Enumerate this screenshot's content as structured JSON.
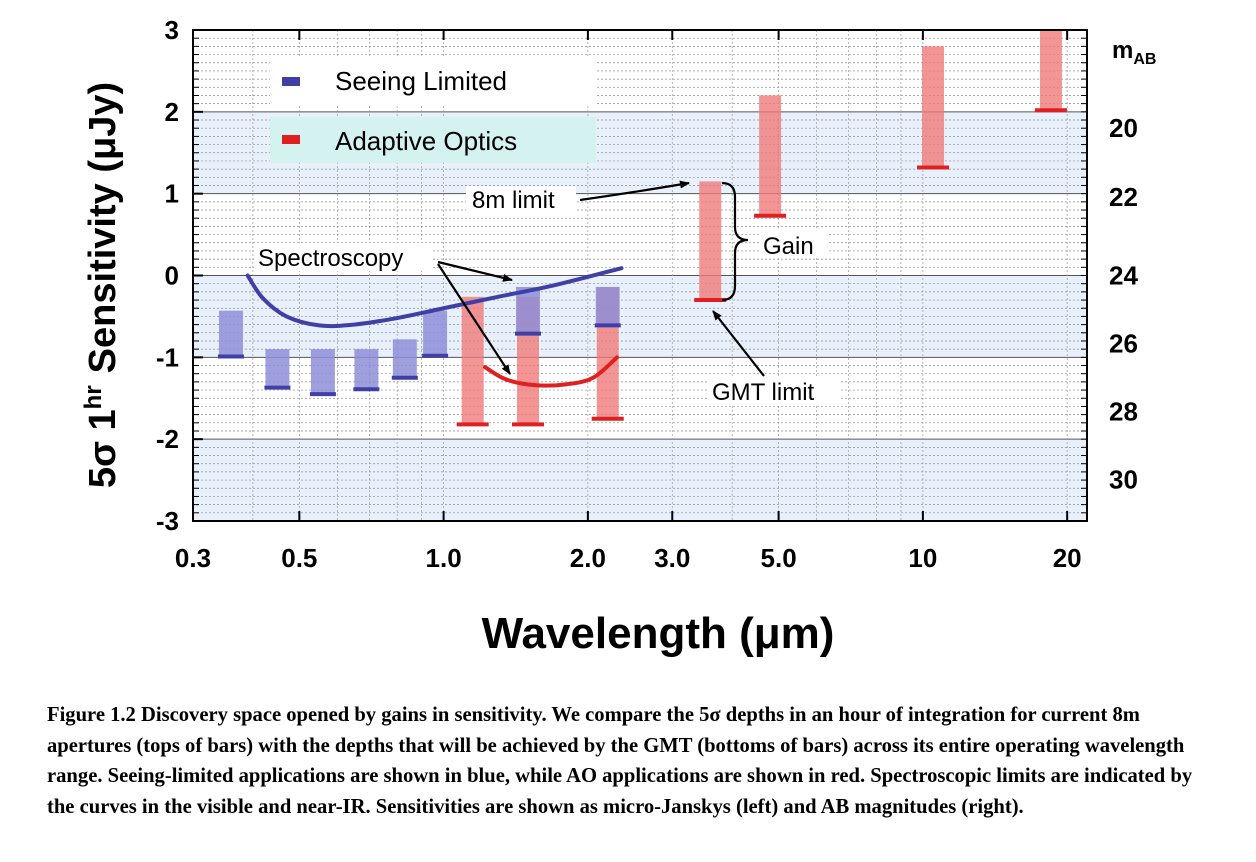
{
  "chart_data": {
    "type": "bar",
    "xscale": "log",
    "xlabel": "Wavelength (μm)",
    "ylabel_main": "Sensitivity (μJy)",
    "ylabel_prefix": "5σ 1",
    "ylabel_super": "hr",
    "right_axis_title": "m",
    "right_axis_title_sub": "AB",
    "xlim": [
      0.3,
      22
    ],
    "ylim": [
      -3,
      3
    ],
    "xticks": [
      {
        "value": 0.3,
        "label": "0.3"
      },
      {
        "value": 0.5,
        "label": "0.5"
      },
      {
        "value": 1.0,
        "label": "1.0"
      },
      {
        "value": 2.0,
        "label": "2.0"
      },
      {
        "value": 3.0,
        "label": "3.0"
      },
      {
        "value": 5.0,
        "label": "5.0"
      },
      {
        "value": 10,
        "label": "10"
      },
      {
        "value": 20,
        "label": "20"
      }
    ],
    "yticks": [
      {
        "value": 3,
        "label": "3"
      },
      {
        "value": 2,
        "label": "2"
      },
      {
        "value": 1,
        "label": "1"
      },
      {
        "value": 0,
        "label": "0"
      },
      {
        "value": -1,
        "label": "-1"
      },
      {
        "value": -2,
        "label": "-2"
      },
      {
        "value": -3,
        "label": "-3"
      }
    ],
    "right_ticks": [
      {
        "y": 1.8,
        "label": "20"
      },
      {
        "y": 0.96,
        "label": "22"
      },
      {
        "y": 0.0,
        "label": "24"
      },
      {
        "y": -0.83,
        "label": "26"
      },
      {
        "y": -1.66,
        "label": "28"
      },
      {
        "y": -2.49,
        "label": "30"
      }
    ],
    "bands": [
      [
        1,
        2
      ],
      [
        -1,
        0
      ],
      [
        -3,
        -2
      ]
    ],
    "series": [
      {
        "name": "Seeing Limited",
        "color": "#3f3fa6",
        "bar_color": "#8e8ed8",
        "bars": [
          {
            "x": 0.36,
            "top": -0.43,
            "bottom": -0.99
          },
          {
            "x": 0.45,
            "top": -0.9,
            "bottom": -1.37
          },
          {
            "x": 0.56,
            "top": -0.9,
            "bottom": -1.45
          },
          {
            "x": 0.69,
            "top": -0.9,
            "bottom": -1.39
          },
          {
            "x": 0.83,
            "top": -0.78,
            "bottom": -1.25
          },
          {
            "x": 0.96,
            "top": -0.43,
            "bottom": -0.98
          },
          {
            "x": 1.5,
            "top": -0.14,
            "bottom": -0.71
          },
          {
            "x": 2.2,
            "top": -0.14,
            "bottom": -0.61
          }
        ]
      },
      {
        "name": "Adaptive Optics",
        "color": "#e02020",
        "bar_color": "#f07a7a",
        "bars": [
          {
            "x": 1.15,
            "top": -0.26,
            "bottom": -1.82
          },
          {
            "x": 1.5,
            "top": -0.26,
            "bottom": -1.82
          },
          {
            "x": 2.2,
            "top": -0.14,
            "bottom": -1.75
          },
          {
            "x": 3.6,
            "top": 1.15,
            "bottom": -0.3
          },
          {
            "x": 4.8,
            "top": 2.2,
            "bottom": 0.73
          },
          {
            "x": 10.5,
            "top": 2.8,
            "bottom": 1.32
          },
          {
            "x": 18.5,
            "top": 3.0,
            "bottom": 2.02
          }
        ]
      }
    ],
    "spectroscopy_curves": [
      {
        "name": "Seeing-limited spectroscopy",
        "color": "#3f3fa6",
        "points": [
          [
            0.39,
            0.0
          ],
          [
            0.42,
            -0.28
          ],
          [
            0.47,
            -0.5
          ],
          [
            0.55,
            -0.61
          ],
          [
            0.65,
            -0.6
          ],
          [
            0.8,
            -0.52
          ],
          [
            1.0,
            -0.4
          ],
          [
            1.3,
            -0.26
          ],
          [
            1.7,
            -0.12
          ],
          [
            2.35,
            0.09
          ]
        ]
      },
      {
        "name": "AO spectroscopy",
        "color": "#e02020",
        "points": [
          [
            1.22,
            -1.12
          ],
          [
            1.35,
            -1.27
          ],
          [
            1.55,
            -1.34
          ],
          [
            1.8,
            -1.33
          ],
          [
            2.05,
            -1.25
          ],
          [
            2.3,
            -1.0
          ]
        ]
      }
    ],
    "annotations": {
      "spectroscopy": "Spectroscopy",
      "limit_8m": "8m limit",
      "gain": "Gain",
      "gmt_limit": "GMT limit"
    }
  },
  "caption": "Figure 1.2 Discovery space opened by gains in sensitivity. We compare the 5σ depths in an hour of integration for current 8m apertures (tops of bars) with the depths that will be achieved by the GMT (bottoms of bars) across its entire operating wavelength range. Seeing-limited applications are shown in blue, while AO applications are shown in red. Spectroscopic limits are indicated by the curves in the visible and near-IR. Sensitivities are shown as micro-Janskys (left) and AB magnitudes (right)."
}
